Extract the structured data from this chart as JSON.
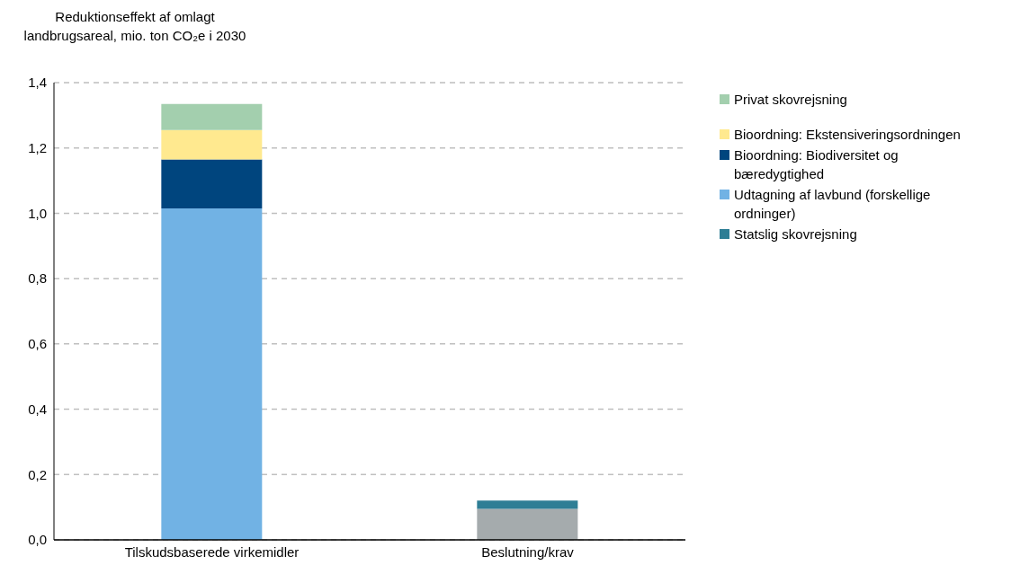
{
  "chart_data": {
    "type": "bar",
    "stacked": true,
    "ylabel": "Reduktionseffekt af omlagt landbrugsareal, mio. ton CO₂e i 2030",
    "categories": [
      "Tilskudsbaserede virkemidler",
      "Beslutning/krav"
    ],
    "series": [
      {
        "color": "#a5abad",
        "values": [
          null,
          0.095
        ]
      },
      {
        "name": "Udtagning af lavbund (forskellige ordninger)",
        "color": "#71b2e4",
        "values": [
          1.015,
          null
        ]
      },
      {
        "name": "Bioordning: Biodiversitet og bæredygtighed",
        "color": "#00457e",
        "values": [
          0.15,
          null
        ]
      },
      {
        "name": "Bioordning: Ekstensiveringsordningen",
        "color": "#ffe98f",
        "values": [
          0.09,
          null
        ]
      },
      {
        "name": "Privat skovrejsning",
        "color": "#a3cfae",
        "values": [
          0.08,
          null
        ]
      },
      {
        "name": "Statslig skovrejsning",
        "color": "#2e7e95",
        "values": [
          null,
          0.025
        ]
      }
    ],
    "ylim": [
      0,
      1.4
    ],
    "yticks": [
      {
        "value": 0,
        "label": "0,0"
      },
      {
        "value": 0.2,
        "label": "0,2"
      },
      {
        "value": 0.4,
        "label": "0,4"
      },
      {
        "value": 0.6,
        "label": "0,6"
      },
      {
        "value": 0.8,
        "label": "0,8"
      },
      {
        "value": 1.0,
        "label": "1,0"
      },
      {
        "value": 1.2,
        "label": "1,2"
      },
      {
        "value": 1.4,
        "label": "1,4"
      }
    ],
    "grid": "y",
    "legend": "right"
  }
}
